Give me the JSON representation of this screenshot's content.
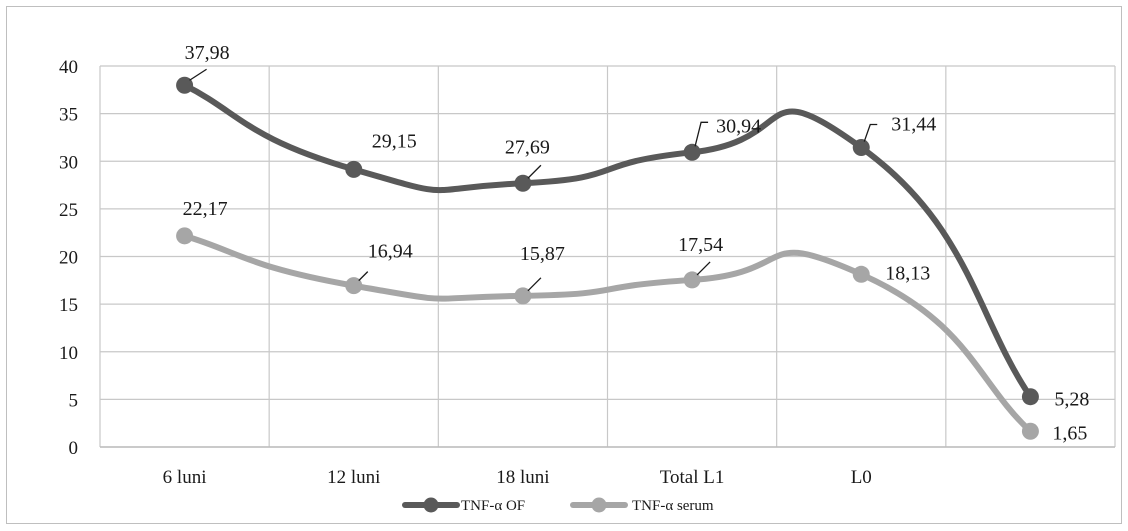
{
  "chart_data": {
    "type": "line",
    "smooth": true,
    "categories": [
      "6 luni",
      "12 luni",
      "18 luni",
      "Total L1",
      "L0",
      ""
    ],
    "ylim": [
      0,
      40
    ],
    "yticks": [
      0,
      5,
      10,
      15,
      20,
      25,
      30,
      35,
      40
    ],
    "ytick_labels": [
      "0",
      "5",
      "10",
      "15",
      "20",
      "25",
      "30",
      "35",
      "40"
    ],
    "grid": true,
    "legend_position": "bottom",
    "series": [
      {
        "name": "TNF-α OF",
        "color": "#595959",
        "values": [
          37.98,
          29.15,
          27.69,
          30.94,
          31.44,
          5.28
        ],
        "labels": [
          "37,98",
          "29,15",
          "27,69",
          "30,94",
          "31,44",
          "5,28"
        ]
      },
      {
        "name": "TNF-α serum",
        "color": "#a6a6a6",
        "values": [
          22.17,
          16.94,
          15.87,
          17.54,
          18.13,
          1.65
        ],
        "labels": [
          "22,17",
          "16,94",
          "15,87",
          "17,54",
          "18,13",
          "1,65"
        ]
      }
    ]
  }
}
